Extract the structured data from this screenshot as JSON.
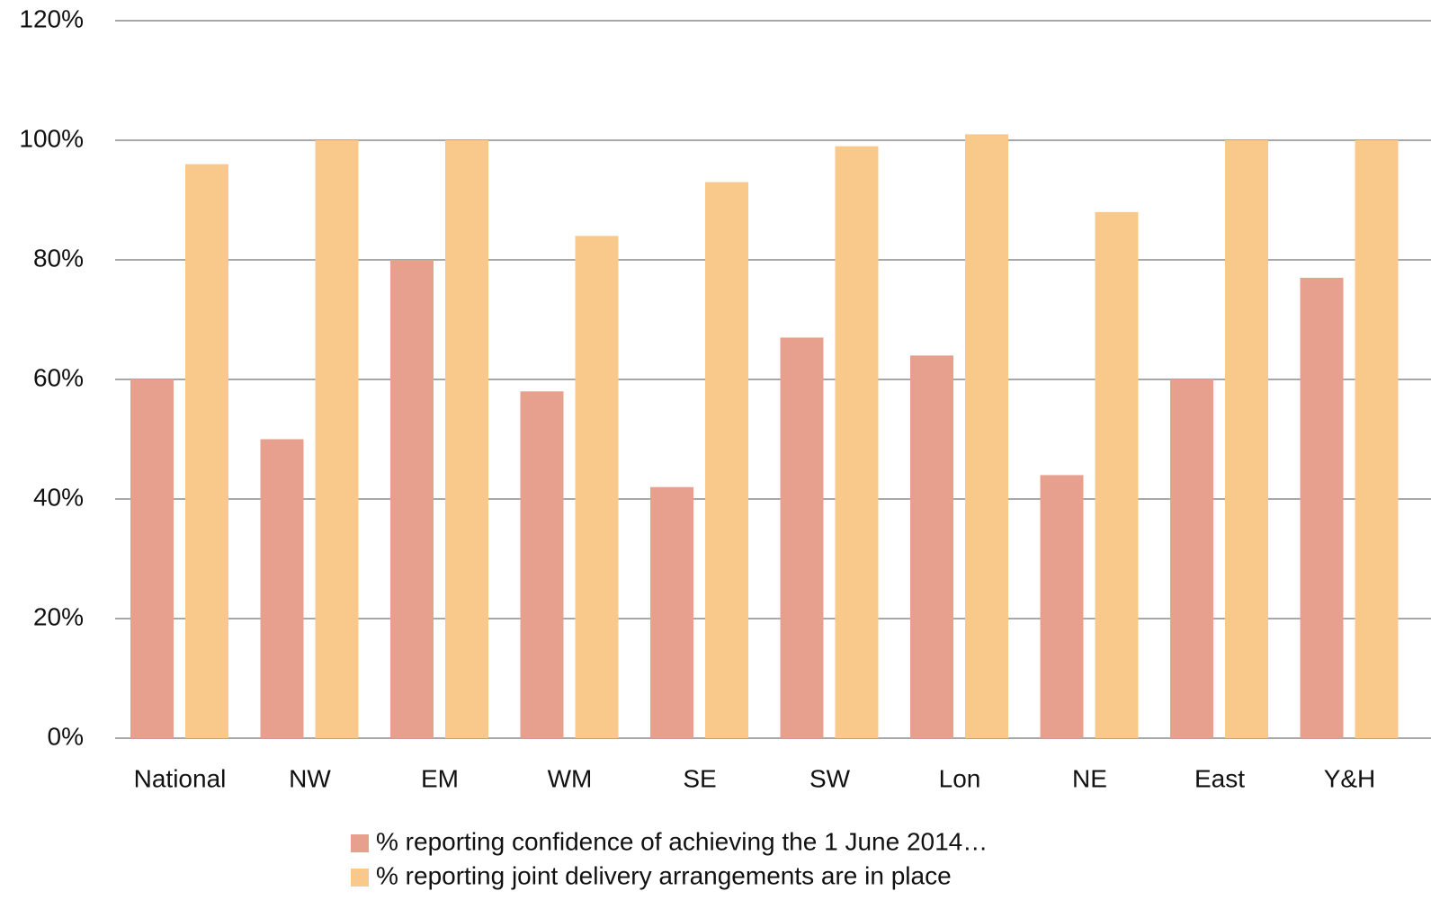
{
  "chart_data": {
    "type": "bar",
    "categories": [
      "National",
      "NW",
      "EM",
      "WM",
      "SE",
      "SW",
      "Lon",
      "NE",
      "East",
      "Y&H"
    ],
    "series": [
      {
        "name": "% reporting confidence of achieving the 1 June 2014…",
        "color": "#e6a08d",
        "values": [
          60,
          50,
          80,
          58,
          42,
          67,
          64,
          44,
          60,
          77
        ]
      },
      {
        "name": "% reporting joint delivery arrangements are in place",
        "color": "#f9c98c",
        "values": [
          96,
          100,
          100,
          84,
          93,
          99,
          101,
          88,
          100,
          100
        ]
      }
    ],
    "ylim": [
      0,
      120
    ],
    "yticks": [
      {
        "value": 0,
        "label": "0%"
      },
      {
        "value": 20,
        "label": "20%"
      },
      {
        "value": 40,
        "label": "40%"
      },
      {
        "value": 60,
        "label": "60%"
      },
      {
        "value": 80,
        "label": "80%"
      },
      {
        "value": 100,
        "label": "100%"
      },
      {
        "value": 120,
        "label": "120%"
      }
    ],
    "grid": true,
    "legend": "bottom"
  }
}
